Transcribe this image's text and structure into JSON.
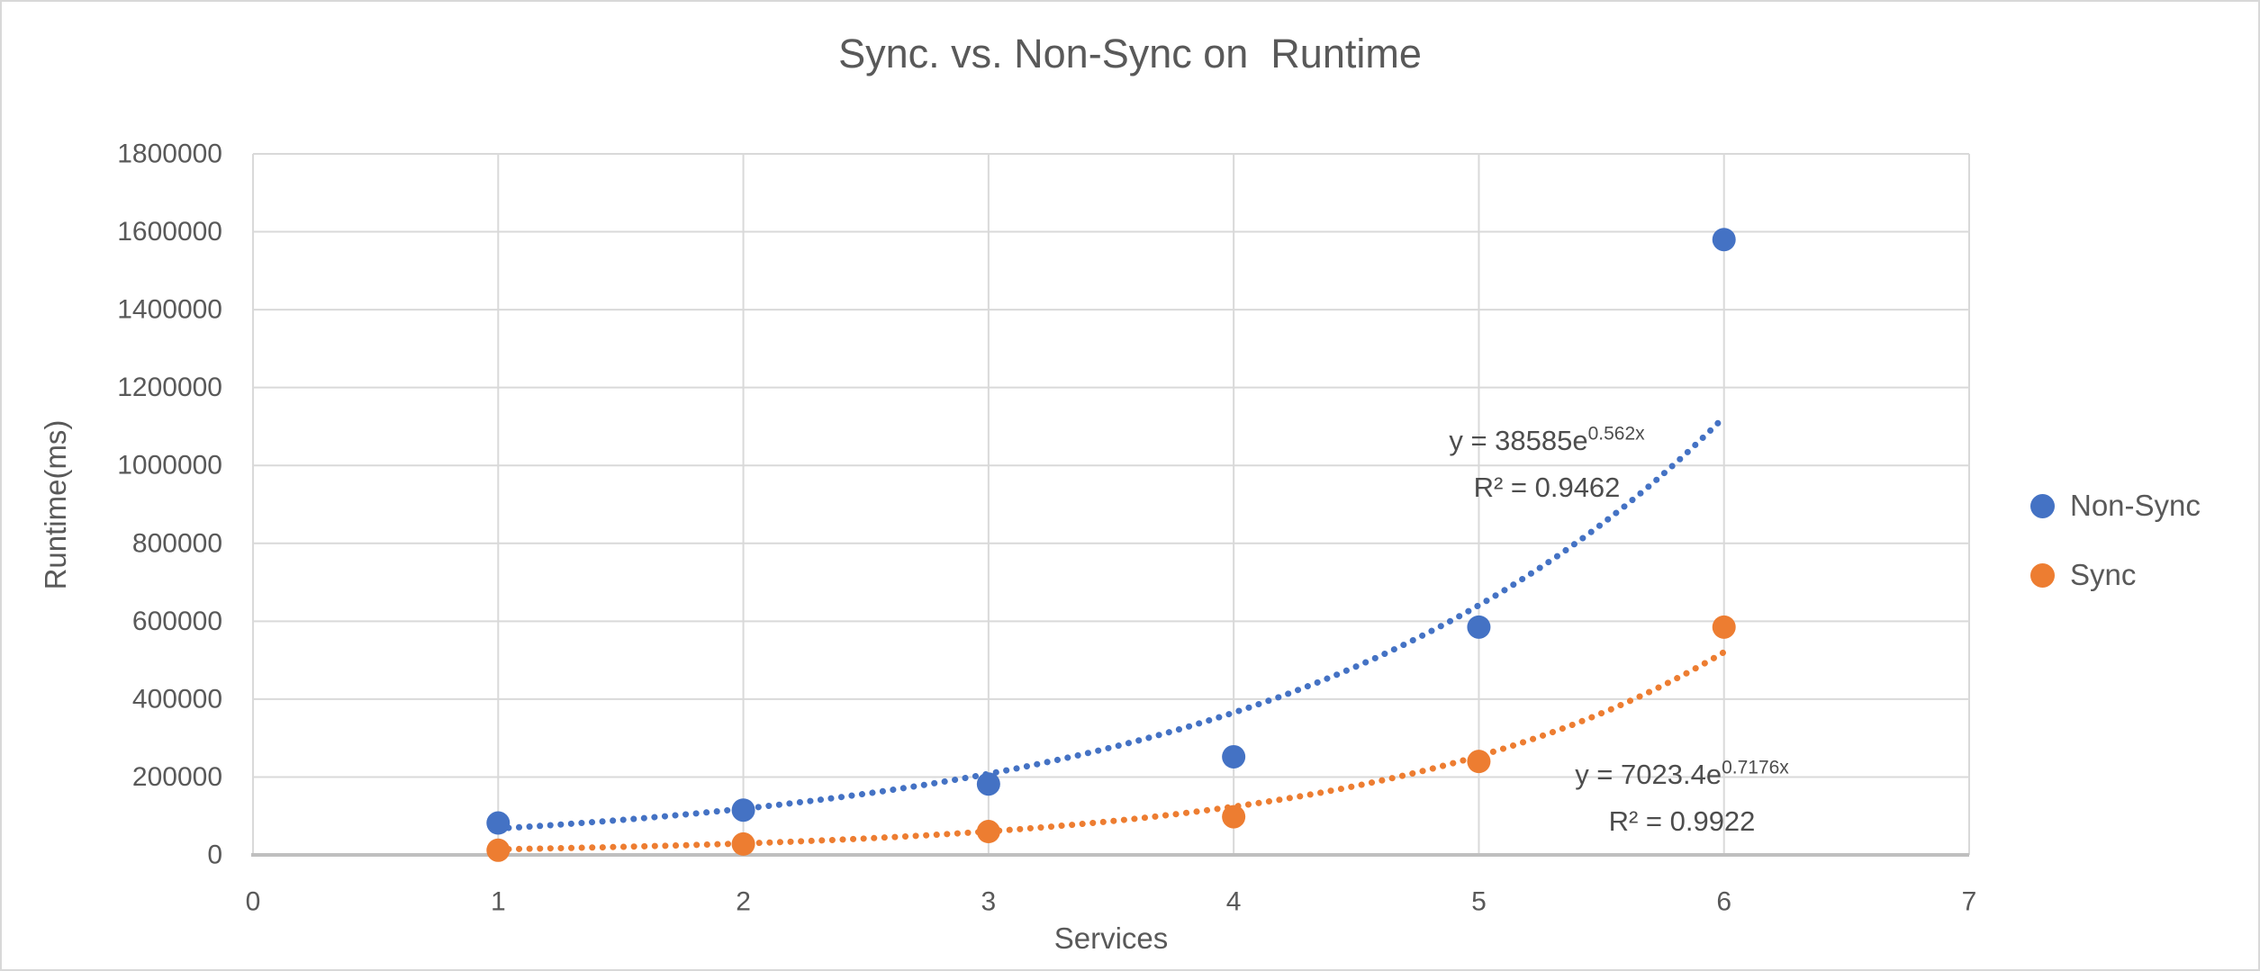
{
  "colors": {
    "background": "#FFFFFF",
    "frame_border": "#D8D8D8",
    "gridline": "#D9D9D9",
    "axis_line": "#BFBFBF",
    "text": "#595959",
    "equation_text": "#4D4D4D"
  },
  "chart_data": {
    "type": "scatter",
    "title": "Sync. vs. Non-Sync on  Runtime",
    "xlabel": "Services",
    "ylabel": "Runtime(ms)",
    "xlim": [
      0,
      7
    ],
    "ylim": [
      0,
      1800000
    ],
    "xticks": [
      0,
      1,
      2,
      3,
      4,
      5,
      6,
      7
    ],
    "ytick_step": 200000,
    "grid": true,
    "legend_position": "right",
    "x": [
      1,
      2,
      3,
      4,
      5,
      6
    ],
    "series": [
      {
        "name": "Non-Sync",
        "color": "#4472C4",
        "values": [
          82000,
          115000,
          182000,
          252000,
          585000,
          1580000
        ],
        "trendline": {
          "type": "exponential",
          "a": 38585,
          "b": 0.562,
          "style": "dotted",
          "range": [
            1,
            6
          ],
          "equation_base": "y = 38585e",
          "equation_exponent": "0.562x",
          "r_squared": "R² = 0.9462"
        }
      },
      {
        "name": "Sync",
        "color": "#ED7D31",
        "values": [
          12000,
          28000,
          60000,
          98000,
          240000,
          585000
        ],
        "trendline": {
          "type": "exponential",
          "a": 7023.4,
          "b": 0.7176,
          "style": "dotted",
          "range": [
            1,
            6
          ],
          "equation_base": "y = 7023.4e",
          "equation_exponent": "0.7176x",
          "r_squared": "R² = 0.9922"
        }
      }
    ]
  }
}
